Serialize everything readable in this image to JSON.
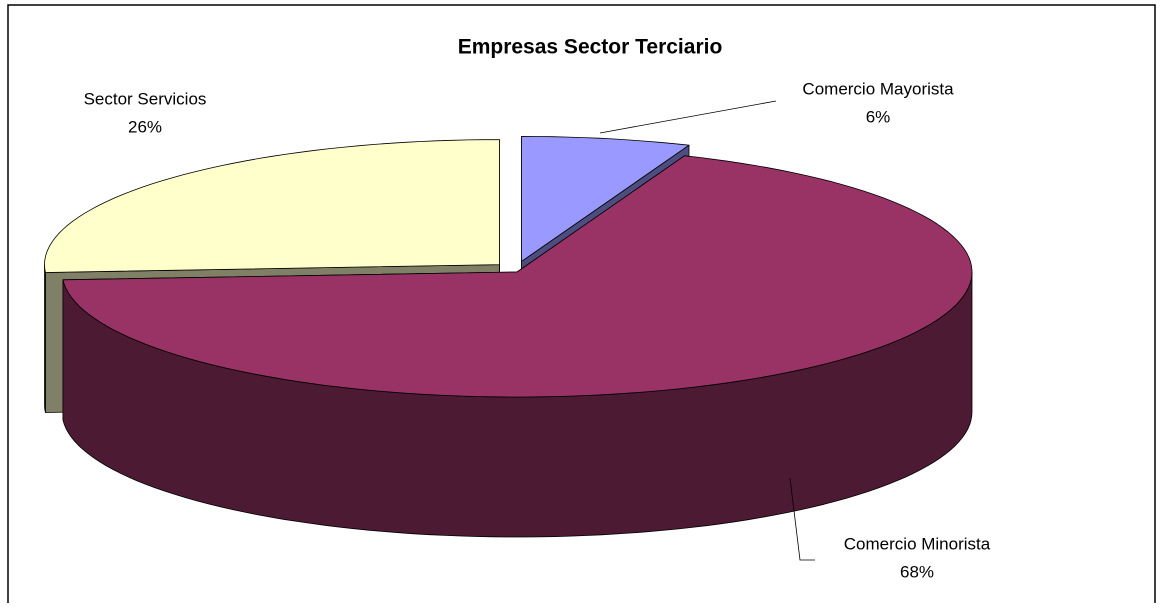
{
  "chart_data": {
    "type": "pie",
    "title": "Empresas Sector Terciario",
    "categories": [
      "Comercio Mayorista",
      "Comercio Minorista",
      "Sector Servicios"
    ],
    "values": [
      6,
      68,
      26
    ],
    "value_labels": [
      "6%",
      "68%",
      "26%"
    ],
    "colors": [
      "#9999ff",
      "#993366",
      "#ffffcc"
    ]
  }
}
